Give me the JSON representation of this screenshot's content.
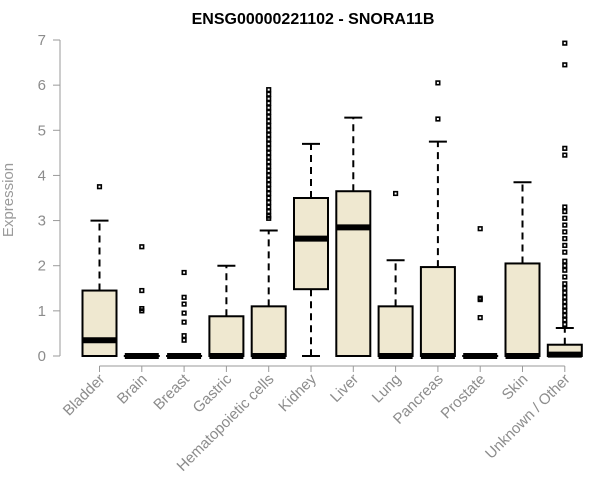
{
  "chart_data": {
    "type": "boxplot",
    "title": "ENSG00000221102 - SNORA11B",
    "xlabel": "",
    "ylabel": "Expression",
    "ylim": [
      0,
      7
    ],
    "yticks": [
      0,
      1,
      2,
      3,
      4,
      5,
      6,
      7
    ],
    "box_fill": "#efe8d0",
    "categories": [
      "Bladder",
      "Brain",
      "Breast",
      "Gastric",
      "Hematopoietic cells",
      "Kidney",
      "Liver",
      "Lung",
      "Pancreas",
      "Prostate",
      "Skin",
      "Unknown / Other"
    ],
    "series": [
      {
        "name": "Bladder",
        "min": 0,
        "q1": 0,
        "median": 0.35,
        "q3": 1.45,
        "max": 3.0,
        "outliers": [
          3.75
        ]
      },
      {
        "name": "Brain",
        "min": 0,
        "q1": 0,
        "median": 0,
        "q3": 0,
        "max": 0,
        "outliers": [
          2.42,
          1.45,
          1.05,
          1.0
        ]
      },
      {
        "name": "Breast",
        "min": 0,
        "q1": 0,
        "median": 0,
        "q3": 0,
        "max": 0,
        "outliers": [
          1.85,
          1.3,
          1.15,
          0.95,
          0.75,
          0.45,
          0.35
        ]
      },
      {
        "name": "Gastric",
        "min": 0,
        "q1": 0,
        "median": 0,
        "q3": 0.88,
        "max": 2.0,
        "outliers": []
      },
      {
        "name": "Hematopoietic cells",
        "min": 0,
        "q1": 0,
        "median": 0,
        "q3": 1.1,
        "max": 2.78,
        "outliers": [
          3.05,
          3.1,
          3.2,
          3.3,
          3.4,
          3.5,
          3.6,
          3.7,
          3.8,
          3.9,
          4.0,
          4.1,
          4.2,
          4.3,
          4.4,
          4.5,
          4.6,
          4.7,
          4.8,
          4.9,
          5.0,
          5.1,
          5.2,
          5.3,
          5.4,
          5.5,
          5.6,
          5.7,
          5.8,
          5.9
        ]
      },
      {
        "name": "Kidney",
        "min": 0,
        "q1": 1.48,
        "median": 2.6,
        "q3": 3.5,
        "max": 4.7,
        "outliers": []
      },
      {
        "name": "Liver",
        "min": 0,
        "q1": 0,
        "median": 2.85,
        "q3": 3.65,
        "max": 5.28,
        "outliers": []
      },
      {
        "name": "Lung",
        "min": 0,
        "q1": 0,
        "median": 0,
        "q3": 1.1,
        "max": 2.12,
        "outliers": [
          3.6
        ]
      },
      {
        "name": "Pancreas",
        "min": 0,
        "q1": 0,
        "median": 0,
        "q3": 1.97,
        "max": 4.75,
        "outliers": [
          5.25,
          6.05
        ]
      },
      {
        "name": "Prostate",
        "min": 0,
        "q1": 0,
        "median": 0,
        "q3": 0,
        "max": 0,
        "outliers": [
          2.82,
          1.28,
          1.25,
          0.85
        ]
      },
      {
        "name": "Skin",
        "min": 0,
        "q1": 0,
        "median": 0,
        "q3": 2.05,
        "max": 3.85,
        "outliers": []
      },
      {
        "name": "Unknown / Other",
        "min": 0,
        "q1": 0,
        "median": 0.03,
        "q3": 0.25,
        "max": 0.62,
        "outliers": [
          0.7,
          0.8,
          0.9,
          1.0,
          1.1,
          1.2,
          1.3,
          1.4,
          1.5,
          1.6,
          1.75,
          1.9,
          2.0,
          2.1,
          2.3,
          2.45,
          2.6,
          2.75,
          2.9,
          3.05,
          3.2,
          3.3,
          4.45,
          4.6,
          6.45,
          6.93
        ]
      }
    ]
  }
}
